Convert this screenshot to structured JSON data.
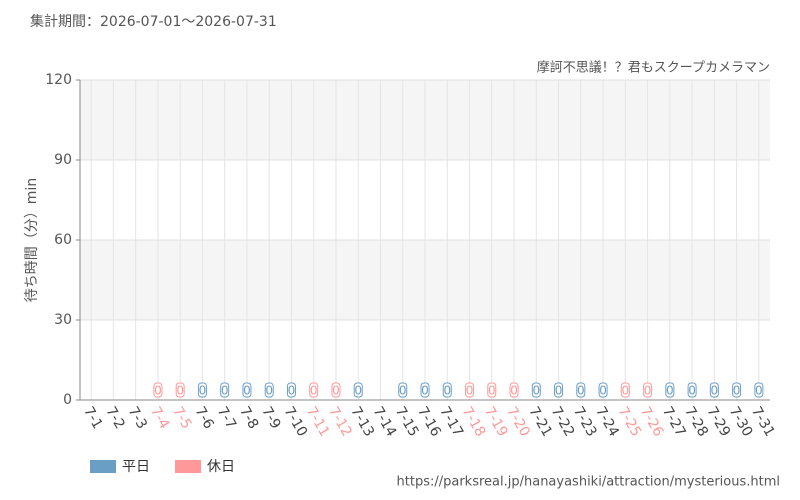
{
  "chart_data": {
    "type": "bar",
    "title": "集計期間：2026-07-01～2026-07-31",
    "subtitle": "摩訶不思議！？君もスクープカメラマン",
    "y_label": "待ち時間（分）min",
    "source": "https://parksreal.jp/hanayashiki/attraction/mysterious.html",
    "categories": [
      "7-1",
      "7-2",
      "7-3",
      "7-4",
      "7-5",
      "7-6",
      "7-7",
      "7-8",
      "7-9",
      "7-10",
      "7-11",
      "7-12",
      "7-13",
      "7-14",
      "7-15",
      "7-16",
      "7-17",
      "7-18",
      "7-19",
      "7-20",
      "7-21",
      "7-22",
      "7-23",
      "7-24",
      "7-25",
      "7-26",
      "7-27",
      "7-28",
      "7-29",
      "7-30",
      "7-31"
    ],
    "series": [
      {
        "name": "平日",
        "color": "#6a9ec5",
        "values": [
          null,
          null,
          null,
          null,
          null,
          0,
          0,
          0,
          0,
          0,
          null,
          null,
          0,
          null,
          0,
          0,
          0,
          null,
          null,
          null,
          0,
          0,
          0,
          0,
          null,
          null,
          0,
          0,
          0,
          0,
          0
        ]
      },
      {
        "name": "休日",
        "color": "#ff9999",
        "values": [
          null,
          null,
          null,
          0,
          0,
          null,
          null,
          null,
          null,
          null,
          0,
          0,
          null,
          null,
          null,
          null,
          null,
          0,
          0,
          0,
          null,
          null,
          null,
          null,
          0,
          0,
          null,
          null,
          null,
          null,
          null
        ]
      }
    ],
    "ylim": [
      0,
      120
    ],
    "yticks": [
      0,
      30,
      60,
      90,
      120
    ],
    "grid": true
  }
}
